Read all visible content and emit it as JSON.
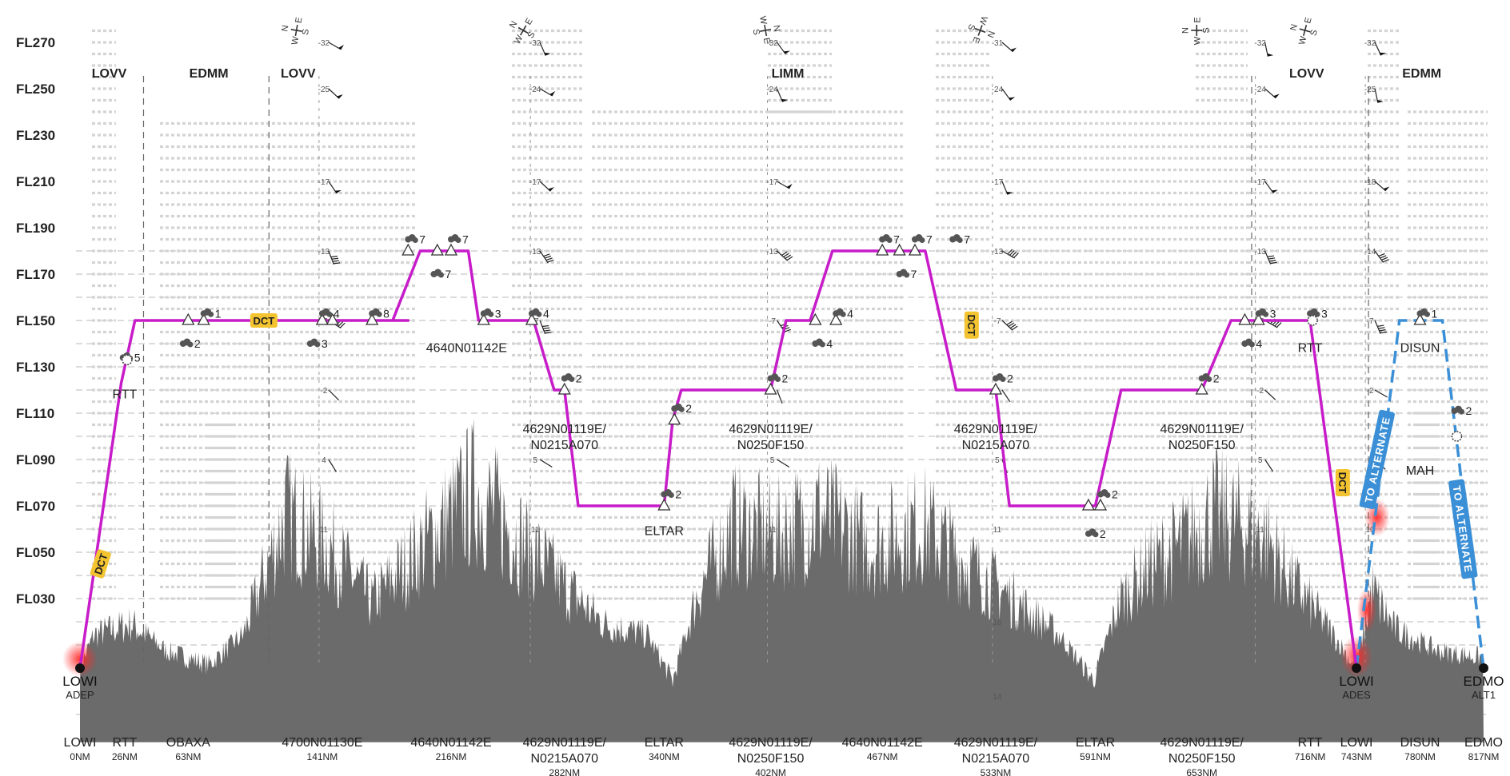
{
  "chart_data": {
    "type": "line",
    "y_axis": {
      "unit": "FL",
      "labels": [
        "FL270",
        "FL250",
        "FL230",
        "FL210",
        "FL190",
        "FL170",
        "FL150",
        "FL130",
        "FL110",
        "FL090",
        "FL070",
        "FL050",
        "FL030"
      ],
      "values": [
        270,
        250,
        230,
        210,
        190,
        170,
        150,
        130,
        110,
        90,
        70,
        50,
        30
      ],
      "range": [
        0,
        280
      ]
    },
    "x_axis": {
      "unit": "NM",
      "range": [
        0,
        817
      ]
    },
    "fir_labels": [
      {
        "text": "LOVV",
        "nm": 17
      },
      {
        "text": "EDMM",
        "nm": 75
      },
      {
        "text": "LOVV",
        "nm": 127
      },
      {
        "text": "LIMM",
        "nm": 412
      },
      {
        "text": "LOVV",
        "nm": 714
      },
      {
        "text": "EDMM",
        "nm": 781
      }
    ],
    "fir_boundaries_nm": [
      37,
      110,
      682,
      750
    ],
    "route": [
      [
        0,
        0
      ],
      [
        24,
        123
      ],
      [
        32,
        150
      ],
      [
        134,
        150
      ],
      [
        180,
        150
      ],
      [
        182,
        150
      ],
      [
        191,
        150
      ],
      [
        182,
        150
      ],
      [
        198,
        180
      ],
      [
        226,
        180
      ],
      [
        232,
        150
      ],
      [
        264,
        150
      ],
      [
        276,
        120
      ],
      [
        282,
        120
      ],
      [
        290,
        70
      ],
      [
        340,
        70
      ],
      [
        345,
        107
      ],
      [
        350,
        120
      ],
      [
        402,
        120
      ],
      [
        411,
        150
      ],
      [
        425,
        150
      ],
      [
        438,
        180
      ],
      [
        492,
        180
      ],
      [
        510,
        120
      ],
      [
        533,
        120
      ],
      [
        541,
        70
      ],
      [
        591,
        70
      ],
      [
        606,
        120
      ],
      [
        653,
        120
      ],
      [
        670,
        150
      ],
      [
        716,
        150
      ],
      [
        743,
        0
      ]
    ],
    "route_waypoints": [
      {
        "nm": 63,
        "fl": 150
      },
      {
        "nm": 72,
        "fl": 150
      },
      {
        "nm": 141,
        "fl": 150
      },
      {
        "nm": 147,
        "fl": 150
      },
      {
        "nm": 170,
        "fl": 150
      },
      {
        "nm": 191,
        "fl": 180
      },
      {
        "nm": 208,
        "fl": 180
      },
      {
        "nm": 216,
        "fl": 180
      },
      {
        "nm": 235,
        "fl": 150
      },
      {
        "nm": 263,
        "fl": 150
      },
      {
        "nm": 282,
        "fl": 120
      },
      {
        "nm": 340,
        "fl": 70
      },
      {
        "nm": 346,
        "fl": 107
      },
      {
        "nm": 402,
        "fl": 120
      },
      {
        "nm": 428,
        "fl": 150
      },
      {
        "nm": 440,
        "fl": 150
      },
      {
        "nm": 467,
        "fl": 180
      },
      {
        "nm": 477,
        "fl": 180
      },
      {
        "nm": 486,
        "fl": 180
      },
      {
        "nm": 533,
        "fl": 120
      },
      {
        "nm": 587,
        "fl": 70
      },
      {
        "nm": 594,
        "fl": 70
      },
      {
        "nm": 653,
        "fl": 120
      },
      {
        "nm": 678,
        "fl": 150
      },
      {
        "nm": 686,
        "fl": 150
      },
      {
        "nm": 780,
        "fl": 150
      }
    ],
    "alternate_route": [
      [
        743,
        0
      ],
      [
        768,
        150
      ],
      [
        793,
        150
      ],
      [
        817,
        0
      ]
    ],
    "waypoint_labels": [
      {
        "name": "RTT",
        "nm": 26,
        "fl": 123
      },
      {
        "name": "4640N01142E",
        "nm": 225,
        "fl": 143
      },
      {
        "name": "4629N01119E/",
        "name2": "N0215A070",
        "nm": 282,
        "fl": 108
      },
      {
        "name": "ELTAR",
        "nm": 340,
        "fl": 64
      },
      {
        "name": "4629N01119E/",
        "name2": "N0250F150",
        "nm": 402,
        "fl": 108
      },
      {
        "name": "4629N01119E/",
        "name2": "N0215A070",
        "nm": 533,
        "fl": 108
      },
      {
        "name": "4629N01119E/",
        "name2": "N0250F150",
        "nm": 653,
        "fl": 108
      },
      {
        "name": "RTT",
        "nm": 716,
        "fl": 143
      },
      {
        "name": "DISUN",
        "nm": 780,
        "fl": 143
      },
      {
        "name": "MAH",
        "nm": 780,
        "fl": 90
      }
    ],
    "cloud_markers": [
      {
        "nm": 25,
        "fl": 134,
        "n": "5"
      },
      {
        "nm": 72,
        "fl": 153,
        "n": "1"
      },
      {
        "nm": 60,
        "fl": 140,
        "n": "2"
      },
      {
        "nm": 141,
        "fl": 153,
        "n": "4"
      },
      {
        "nm": 134,
        "fl": 140,
        "n": "3"
      },
      {
        "nm": 170,
        "fl": 153,
        "n": "8"
      },
      {
        "nm": 191,
        "fl": 185,
        "n": "7"
      },
      {
        "nm": 216,
        "fl": 185,
        "n": "7"
      },
      {
        "nm": 206,
        "fl": 170,
        "n": "7"
      },
      {
        "nm": 235,
        "fl": 153,
        "n": "3"
      },
      {
        "nm": 263,
        "fl": 153,
        "n": "4"
      },
      {
        "nm": 282,
        "fl": 125,
        "n": "2"
      },
      {
        "nm": 340,
        "fl": 75,
        "n": "2"
      },
      {
        "nm": 346,
        "fl": 112,
        "n": "2"
      },
      {
        "nm": 402,
        "fl": 125,
        "n": "2"
      },
      {
        "nm": 428,
        "fl": 140,
        "n": "4"
      },
      {
        "nm": 440,
        "fl": 153,
        "n": "4"
      },
      {
        "nm": 467,
        "fl": 185,
        "n": "7"
      },
      {
        "nm": 486,
        "fl": 185,
        "n": "7"
      },
      {
        "nm": 508,
        "fl": 185,
        "n": "7"
      },
      {
        "nm": 477,
        "fl": 170,
        "n": "7"
      },
      {
        "nm": 533,
        "fl": 125,
        "n": "2"
      },
      {
        "nm": 594,
        "fl": 75,
        "n": "2"
      },
      {
        "nm": 587,
        "fl": 58,
        "n": "2"
      },
      {
        "nm": 653,
        "fl": 125,
        "n": "2"
      },
      {
        "nm": 686,
        "fl": 153,
        "n": "3"
      },
      {
        "nm": 678,
        "fl": 140,
        "n": "4"
      },
      {
        "nm": 716,
        "fl": 153,
        "n": "3"
      },
      {
        "nm": 780,
        "fl": 153,
        "n": "1"
      },
      {
        "nm": 800,
        "fl": 111,
        "n": "2"
      }
    ],
    "wind_columns_nm": [
      141,
      264,
      402,
      533,
      686,
      750
    ],
    "wind_columns": [
      {
        "nm": 141,
        "temps": [
          {
            "fl": 270,
            "t": "-32"
          },
          {
            "fl": 250,
            "t": "-25"
          },
          {
            "fl": 210,
            "t": "-17"
          },
          {
            "fl": 180,
            "t": "-13"
          },
          {
            "fl": 150,
            "t": "-7"
          },
          {
            "fl": 120,
            "t": "-2"
          },
          {
            "fl": 90,
            "t": "4"
          },
          {
            "fl": 60,
            "t": "11"
          }
        ]
      },
      {
        "nm": 264,
        "temps": [
          {
            "fl": 270,
            "t": "-32"
          },
          {
            "fl": 250,
            "t": "-24"
          },
          {
            "fl": 210,
            "t": "-17"
          },
          {
            "fl": 180,
            "t": "-13"
          },
          {
            "fl": 150,
            "t": "-7"
          },
          {
            "fl": 90,
            "t": "5"
          },
          {
            "fl": 60,
            "t": "11"
          }
        ]
      },
      {
        "nm": 402,
        "temps": [
          {
            "fl": 270,
            "t": "-32"
          },
          {
            "fl": 250,
            "t": "-24"
          },
          {
            "fl": 210,
            "t": "-17"
          },
          {
            "fl": 180,
            "t": "-13"
          },
          {
            "fl": 150,
            "t": "-7"
          },
          {
            "fl": 120,
            "t": "-1"
          },
          {
            "fl": 90,
            "t": "5"
          },
          {
            "fl": 60,
            "t": "11"
          }
        ]
      },
      {
        "nm": 533,
        "temps": [
          {
            "fl": 270,
            "t": "-31"
          },
          {
            "fl": 250,
            "t": "-24"
          },
          {
            "fl": 210,
            "t": "-17"
          },
          {
            "fl": 180,
            "t": "-13"
          },
          {
            "fl": 150,
            "t": "-7"
          },
          {
            "fl": 120,
            "t": "-1"
          },
          {
            "fl": 90,
            "t": "5"
          },
          {
            "fl": 60,
            "t": "11"
          },
          {
            "fl": 20,
            "t": "16"
          },
          {
            "fl": -12,
            "t": "14"
          }
        ]
      },
      {
        "nm": 686,
        "temps": [
          {
            "fl": 270,
            "t": "-32"
          },
          {
            "fl": 250,
            "t": "-24"
          },
          {
            "fl": 210,
            "t": "-17"
          },
          {
            "fl": 180,
            "t": "-13"
          },
          {
            "fl": 150,
            "t": "-7"
          },
          {
            "fl": 120,
            "t": "-2"
          },
          {
            "fl": 90,
            "t": "5"
          },
          {
            "fl": 60,
            "t": "11"
          }
        ]
      },
      {
        "nm": 750,
        "temps": [
          {
            "fl": 270,
            "t": "-32"
          },
          {
            "fl": 250,
            "t": "-25"
          },
          {
            "fl": 210,
            "t": "-18"
          },
          {
            "fl": 180,
            "t": "-14"
          },
          {
            "fl": 150,
            "t": "-7"
          },
          {
            "fl": 120,
            "t": "-2"
          },
          {
            "fl": 90,
            "t": "4"
          },
          {
            "fl": 60,
            "t": "10"
          }
        ]
      }
    ],
    "compass_nm": [
      126,
      258,
      399,
      524,
      650,
      713
    ],
    "airports": [
      {
        "name": "LOWI",
        "role": "ADEP",
        "nm": 0
      },
      {
        "name": "LOWI",
        "role": "ADES",
        "nm": 743
      },
      {
        "name": "EDMO",
        "role": "ALT1",
        "nm": 817
      }
    ],
    "bottom_waypoints": [
      {
        "name": "LOWI",
        "dist": "0NM",
        "nm": 0
      },
      {
        "name": "RTT",
        "dist": "26NM",
        "nm": 26
      },
      {
        "name": "OBAXA",
        "dist": "63NM",
        "nm": 63
      },
      {
        "name": "4700N01130E",
        "dist": "141NM",
        "nm": 141
      },
      {
        "name": "4640N01142E",
        "dist": "216NM",
        "nm": 216
      },
      {
        "name": "4629N01119E/",
        "name2": "N0215A070",
        "dist": "282NM",
        "nm": 282
      },
      {
        "name": "ELTAR",
        "dist": "340NM",
        "nm": 340
      },
      {
        "name": "4629N01119E/",
        "name2": "N0250F150",
        "dist": "402NM",
        "nm": 402
      },
      {
        "name": "4640N01142E",
        "dist": "467NM",
        "nm": 467
      },
      {
        "name": "4629N01119E/",
        "name2": "N0215A070",
        "dist": "533NM",
        "nm": 533
      },
      {
        "name": "ELTAR",
        "dist": "591NM",
        "nm": 591
      },
      {
        "name": "4629N01119E/",
        "name2": "N0250F150",
        "dist": "653NM",
        "nm": 653
      },
      {
        "name": "RTT",
        "dist": "716NM",
        "nm": 716
      },
      {
        "name": "LOWI",
        "dist": "743NM",
        "nm": 743
      },
      {
        "name": "DISUN",
        "dist": "780NM",
        "nm": 780
      },
      {
        "name": "EDMO",
        "dist": "817NM",
        "nm": 817
      }
    ],
    "annotations": [
      {
        "type": "dct",
        "text": "DCT",
        "nm": 12,
        "fl": 45
      },
      {
        "type": "dct",
        "text": "DCT",
        "nm": 107,
        "fl": 150
      },
      {
        "type": "dct",
        "text": "DCT",
        "nm": 519,
        "fl": 148
      },
      {
        "type": "dct",
        "text": "DCT",
        "nm": 735,
        "fl": 80
      },
      {
        "type": "alternate",
        "text": "TO ALTERNATE",
        "nm": 755,
        "fl": 90
      },
      {
        "type": "alternate",
        "text": "TO ALTERNATE",
        "nm": 805,
        "fl": 60
      }
    ],
    "colors": {
      "route": "#c71cc9",
      "alternate": "#3a8fd6",
      "terrain": "#6b6b6b",
      "dct_bg": "#f4c430",
      "hazard": "#ff2a2a"
    }
  }
}
